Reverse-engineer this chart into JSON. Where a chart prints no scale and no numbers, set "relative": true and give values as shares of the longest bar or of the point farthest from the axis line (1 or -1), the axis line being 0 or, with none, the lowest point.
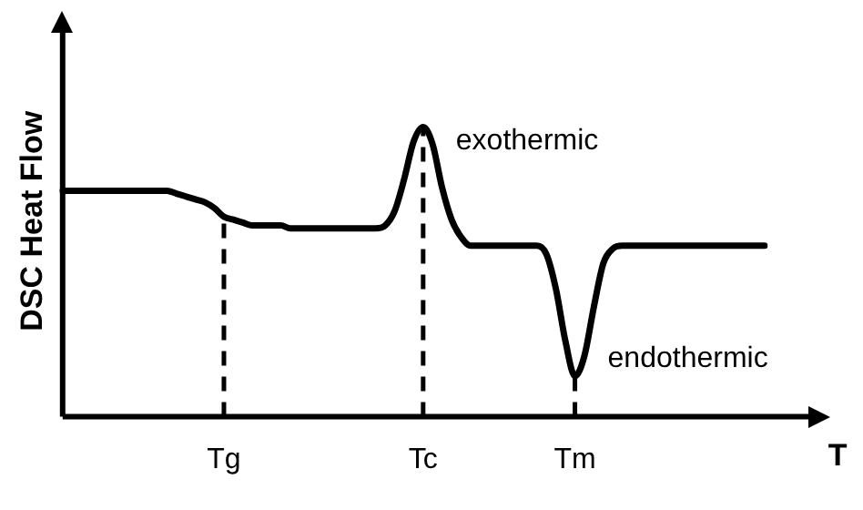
{
  "chart_data": {
    "type": "line",
    "relative": true,
    "xlabel": "T",
    "ylabel": "DSC Heat Flow",
    "color": "#000000",
    "marker": "none",
    "tick_labels": "x",
    "categories": [
      null,
      null,
      null,
      null,
      null,
      null,
      null,
      null,
      null,
      null,
      null,
      null,
      null,
      null,
      null,
      null,
      null,
      "Tg",
      null,
      null,
      null,
      null,
      null,
      null,
      null,
      null,
      null,
      null,
      null,
      null,
      null,
      null,
      null,
      null,
      null,
      null,
      null,
      null,
      "Tc",
      null,
      null,
      null,
      null,
      null,
      null,
      null,
      null,
      null,
      null,
      null,
      null,
      null,
      null,
      null,
      "Tm",
      null,
      null,
      null,
      null,
      null,
      null,
      null,
      null,
      null,
      null,
      null,
      null,
      null,
      null,
      null,
      null,
      null,
      null,
      null,
      null
    ],
    "values": [
      0.78,
      0.78,
      0.78,
      0.78,
      0.78,
      0.78,
      0.78,
      0.78,
      0.78,
      0.78,
      0.78,
      0.78,
      0.77,
      0.76,
      0.75,
      0.74,
      0.72,
      0.69,
      0.68,
      0.67,
      0.66,
      0.66,
      0.66,
      0.66,
      0.65,
      0.65,
      0.65,
      0.65,
      0.65,
      0.65,
      0.65,
      0.65,
      0.65,
      0.65,
      0.66,
      0.71,
      0.82,
      0.95,
      1,
      0.94,
      0.79,
      0.68,
      0.62,
      0.59,
      0.59,
      0.59,
      0.59,
      0.59,
      0.59,
      0.59,
      0.59,
      0.56,
      0.44,
      0.26,
      0.14,
      0.21,
      0.38,
      0.53,
      0.58,
      0.59,
      0.59,
      0.59,
      0.59,
      0.59,
      0.59,
      0.59,
      0.59,
      0.59,
      0.59,
      0.59,
      0.59,
      0.59,
      0.59,
      0.59,
      0.59
    ],
    "ref_lines": [
      {
        "axis": "x",
        "value": "Tg",
        "color": "#000000",
        "line_style": "dashed"
      },
      {
        "axis": "x",
        "value": "Tc",
        "color": "#000000",
        "line_style": "dashed"
      },
      {
        "axis": "x",
        "value": "Tm",
        "color": "#000000",
        "line_style": "dashed"
      }
    ],
    "annotations": [
      {
        "text": "exothermic",
        "x": "Tc",
        "y": 0.95
      },
      {
        "text": "endothermic",
        "x": "Tm",
        "y": 0.2
      }
    ]
  }
}
